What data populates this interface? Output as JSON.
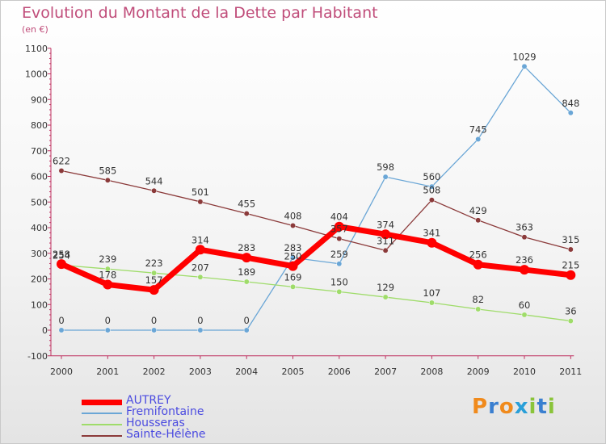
{
  "title": "Evolution du Montant de la Dette par Habitant",
  "subtitle": "(en €)",
  "logo": "Proxiti",
  "colors": {
    "title": "#c04d7a",
    "legend_text": "#4a4ae0"
  },
  "chart_data": {
    "type": "line",
    "categories": [
      "2000",
      "2001",
      "2002",
      "2003",
      "2004",
      "2005",
      "2006",
      "2007",
      "2008",
      "2009",
      "2010",
      "2011"
    ],
    "ylim": [
      -100,
      1100
    ],
    "yticks": [
      "-100",
      "0",
      "100",
      "200",
      "300",
      "400",
      "500",
      "600",
      "700",
      "800",
      "900",
      "1000",
      "1100"
    ],
    "grid": false,
    "legend_position": "bottom-left",
    "series": [
      {
        "name": "AUTREY",
        "color": "#ff0000",
        "values": [
          258,
          178,
          157,
          314,
          283,
          250,
          404,
          374,
          341,
          256,
          236,
          215
        ],
        "labels": [
          "258",
          "178",
          "157",
          "314",
          "283",
          "250",
          "404",
          "374",
          "341",
          "256",
          "236",
          "215"
        ]
      },
      {
        "name": "Fremifontaine",
        "color": "#6aa6d6",
        "values": [
          0,
          0,
          0,
          0,
          0,
          283,
          259,
          598,
          560,
          745,
          1029,
          848
        ],
        "labels": [
          "0",
          "0",
          "0",
          "0",
          "0",
          "283",
          "259",
          "598",
          "560",
          "745",
          "1029",
          "848"
        ]
      },
      {
        "name": "Housseras",
        "color": "#9fdc6a",
        "values": [
          254,
          239,
          223,
          207,
          189,
          169,
          150,
          129,
          107,
          82,
          60,
          36
        ],
        "labels": [
          "254",
          "239",
          "223",
          "207",
          "189",
          "169",
          "150",
          "129",
          "107",
          "82",
          "60",
          "36"
        ]
      },
      {
        "name": "Sainte-Hélène",
        "color": "#8b3a3a",
        "values": [
          622,
          585,
          544,
          501,
          455,
          408,
          357,
          311,
          508,
          429,
          363,
          315
        ],
        "labels": [
          "622",
          "585",
          "544",
          "501",
          "455",
          "408",
          "357",
          "311",
          "508",
          "429",
          "363",
          "315"
        ]
      }
    ]
  }
}
